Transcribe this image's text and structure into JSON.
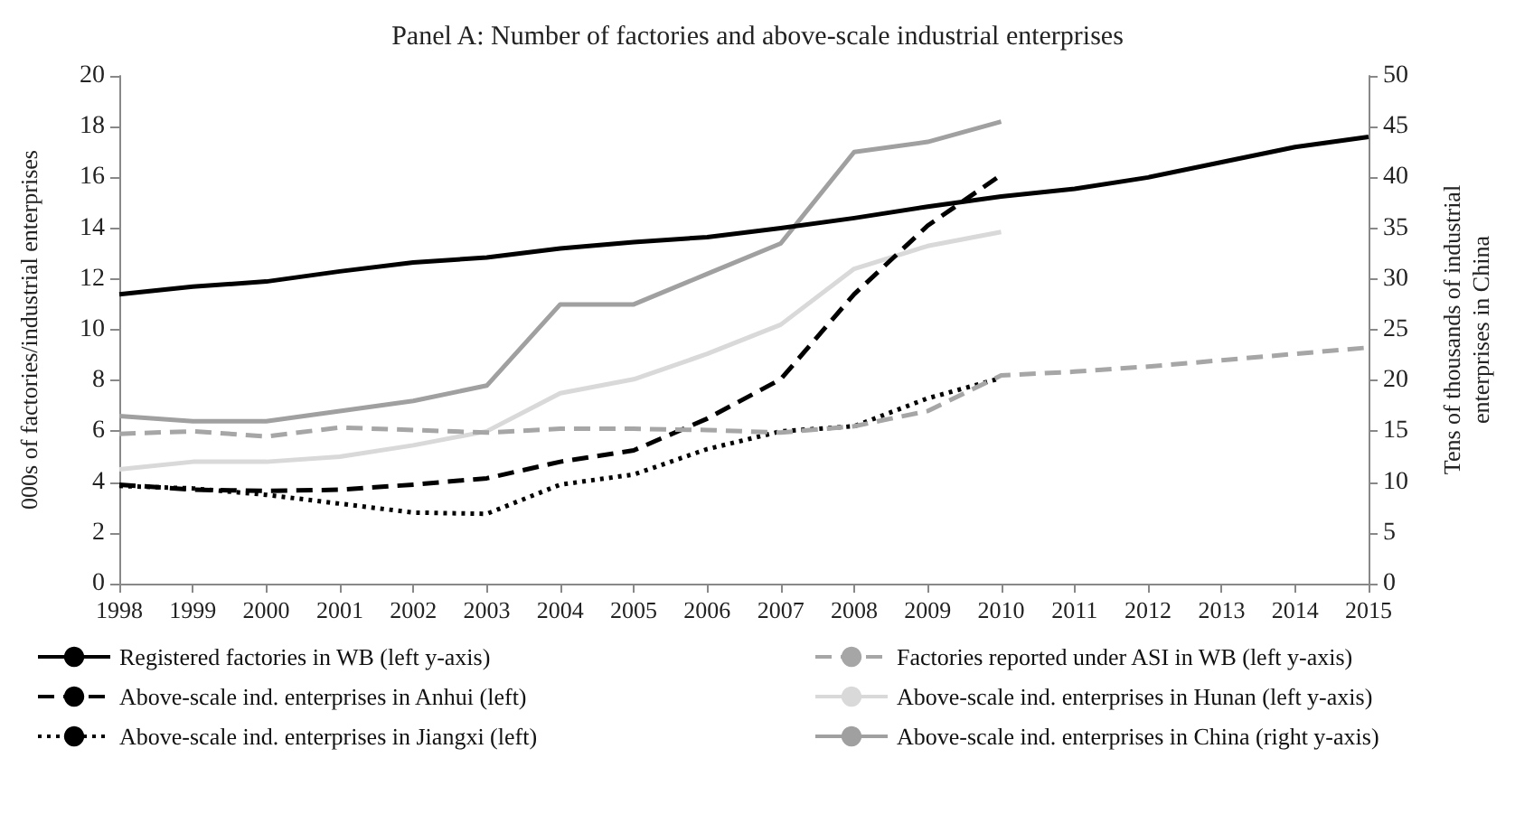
{
  "chart_data": {
    "type": "line",
    "title": "Panel A: Number of factories and above-scale industrial enterprises",
    "ylabel": "000s of factories/industrial enterprises",
    "y2label": "Tens of thousands of industrial enterprises in China",
    "categories": [
      "1998",
      "1999",
      "2000",
      "2001",
      "2002",
      "2003",
      "2004",
      "2005",
      "2006",
      "2007",
      "2008",
      "2009",
      "2010",
      "2011",
      "2012",
      "2013",
      "2014",
      "2015"
    ],
    "series": [
      {
        "name": "Registered factories in WB (left y-axis)",
        "color": "#000000",
        "line_style": "solid",
        "values": [
          11.4,
          11.7,
          11.9,
          12.3,
          12.65,
          12.85,
          13.2,
          13.45,
          13.65,
          14.0,
          14.4,
          14.85,
          15.25,
          15.55,
          16.0,
          16.6,
          17.2,
          17.6
        ]
      },
      {
        "name": "Factories reported under ASI in WB (left y-axis)",
        "color": "#a6a6a6",
        "line_style": "dashed",
        "values": [
          5.9,
          6.0,
          5.8,
          6.15,
          6.05,
          5.95,
          6.1,
          6.1,
          6.05,
          5.95,
          6.2,
          6.8,
          8.2,
          8.35,
          8.55,
          8.8,
          9.05,
          9.3
        ]
      },
      {
        "name": "Above-scale ind. enterprises in Anhui (left)",
        "color": "#000000",
        "line_style": "dashed",
        "values": [
          3.9,
          3.7,
          3.65,
          3.7,
          3.9,
          4.15,
          4.8,
          5.25,
          6.5,
          8.05,
          11.4,
          14.1,
          16.1,
          null,
          null,
          null,
          null,
          null
        ]
      },
      {
        "name": "Above-scale ind. enterprises in Hunan (left y-axis)",
        "color": "#d9d9d9",
        "line_style": "solid",
        "values": [
          4.5,
          4.8,
          4.8,
          5.0,
          5.45,
          6.0,
          7.5,
          8.05,
          9.05,
          10.2,
          12.4,
          13.3,
          13.85,
          null,
          null,
          null,
          null,
          null
        ]
      },
      {
        "name": "Above-scale ind. enterprises in Jiangxi (left)",
        "color": "#000000",
        "line_style": "dotted",
        "values": [
          3.85,
          3.75,
          3.5,
          3.15,
          2.8,
          2.75,
          3.9,
          4.3,
          5.3,
          6.0,
          6.2,
          7.3,
          8.1,
          null,
          null,
          null,
          null,
          null
        ]
      },
      {
        "name": "Above-scale ind. enterprises in China (right y-axis)",
        "color": "#a0a0a0",
        "line_style": "solid",
        "axis": "y2",
        "values": [
          16.5,
          16,
          16,
          17,
          18,
          19.5,
          27.5,
          27.5,
          30.5,
          33.5,
          42.5,
          43.5,
          45.5,
          null,
          null,
          null,
          null,
          null
        ]
      }
    ],
    "ylim": [
      0,
      20
    ],
    "yticks": [
      0,
      2,
      4,
      6,
      8,
      10,
      12,
      14,
      16,
      18,
      20
    ],
    "y2lim": [
      0,
      50
    ],
    "y2ticks": [
      0,
      5,
      10,
      15,
      20,
      25,
      30,
      35,
      40,
      45,
      50
    ],
    "grid": false,
    "legend": "bottom",
    "marker": "none"
  }
}
